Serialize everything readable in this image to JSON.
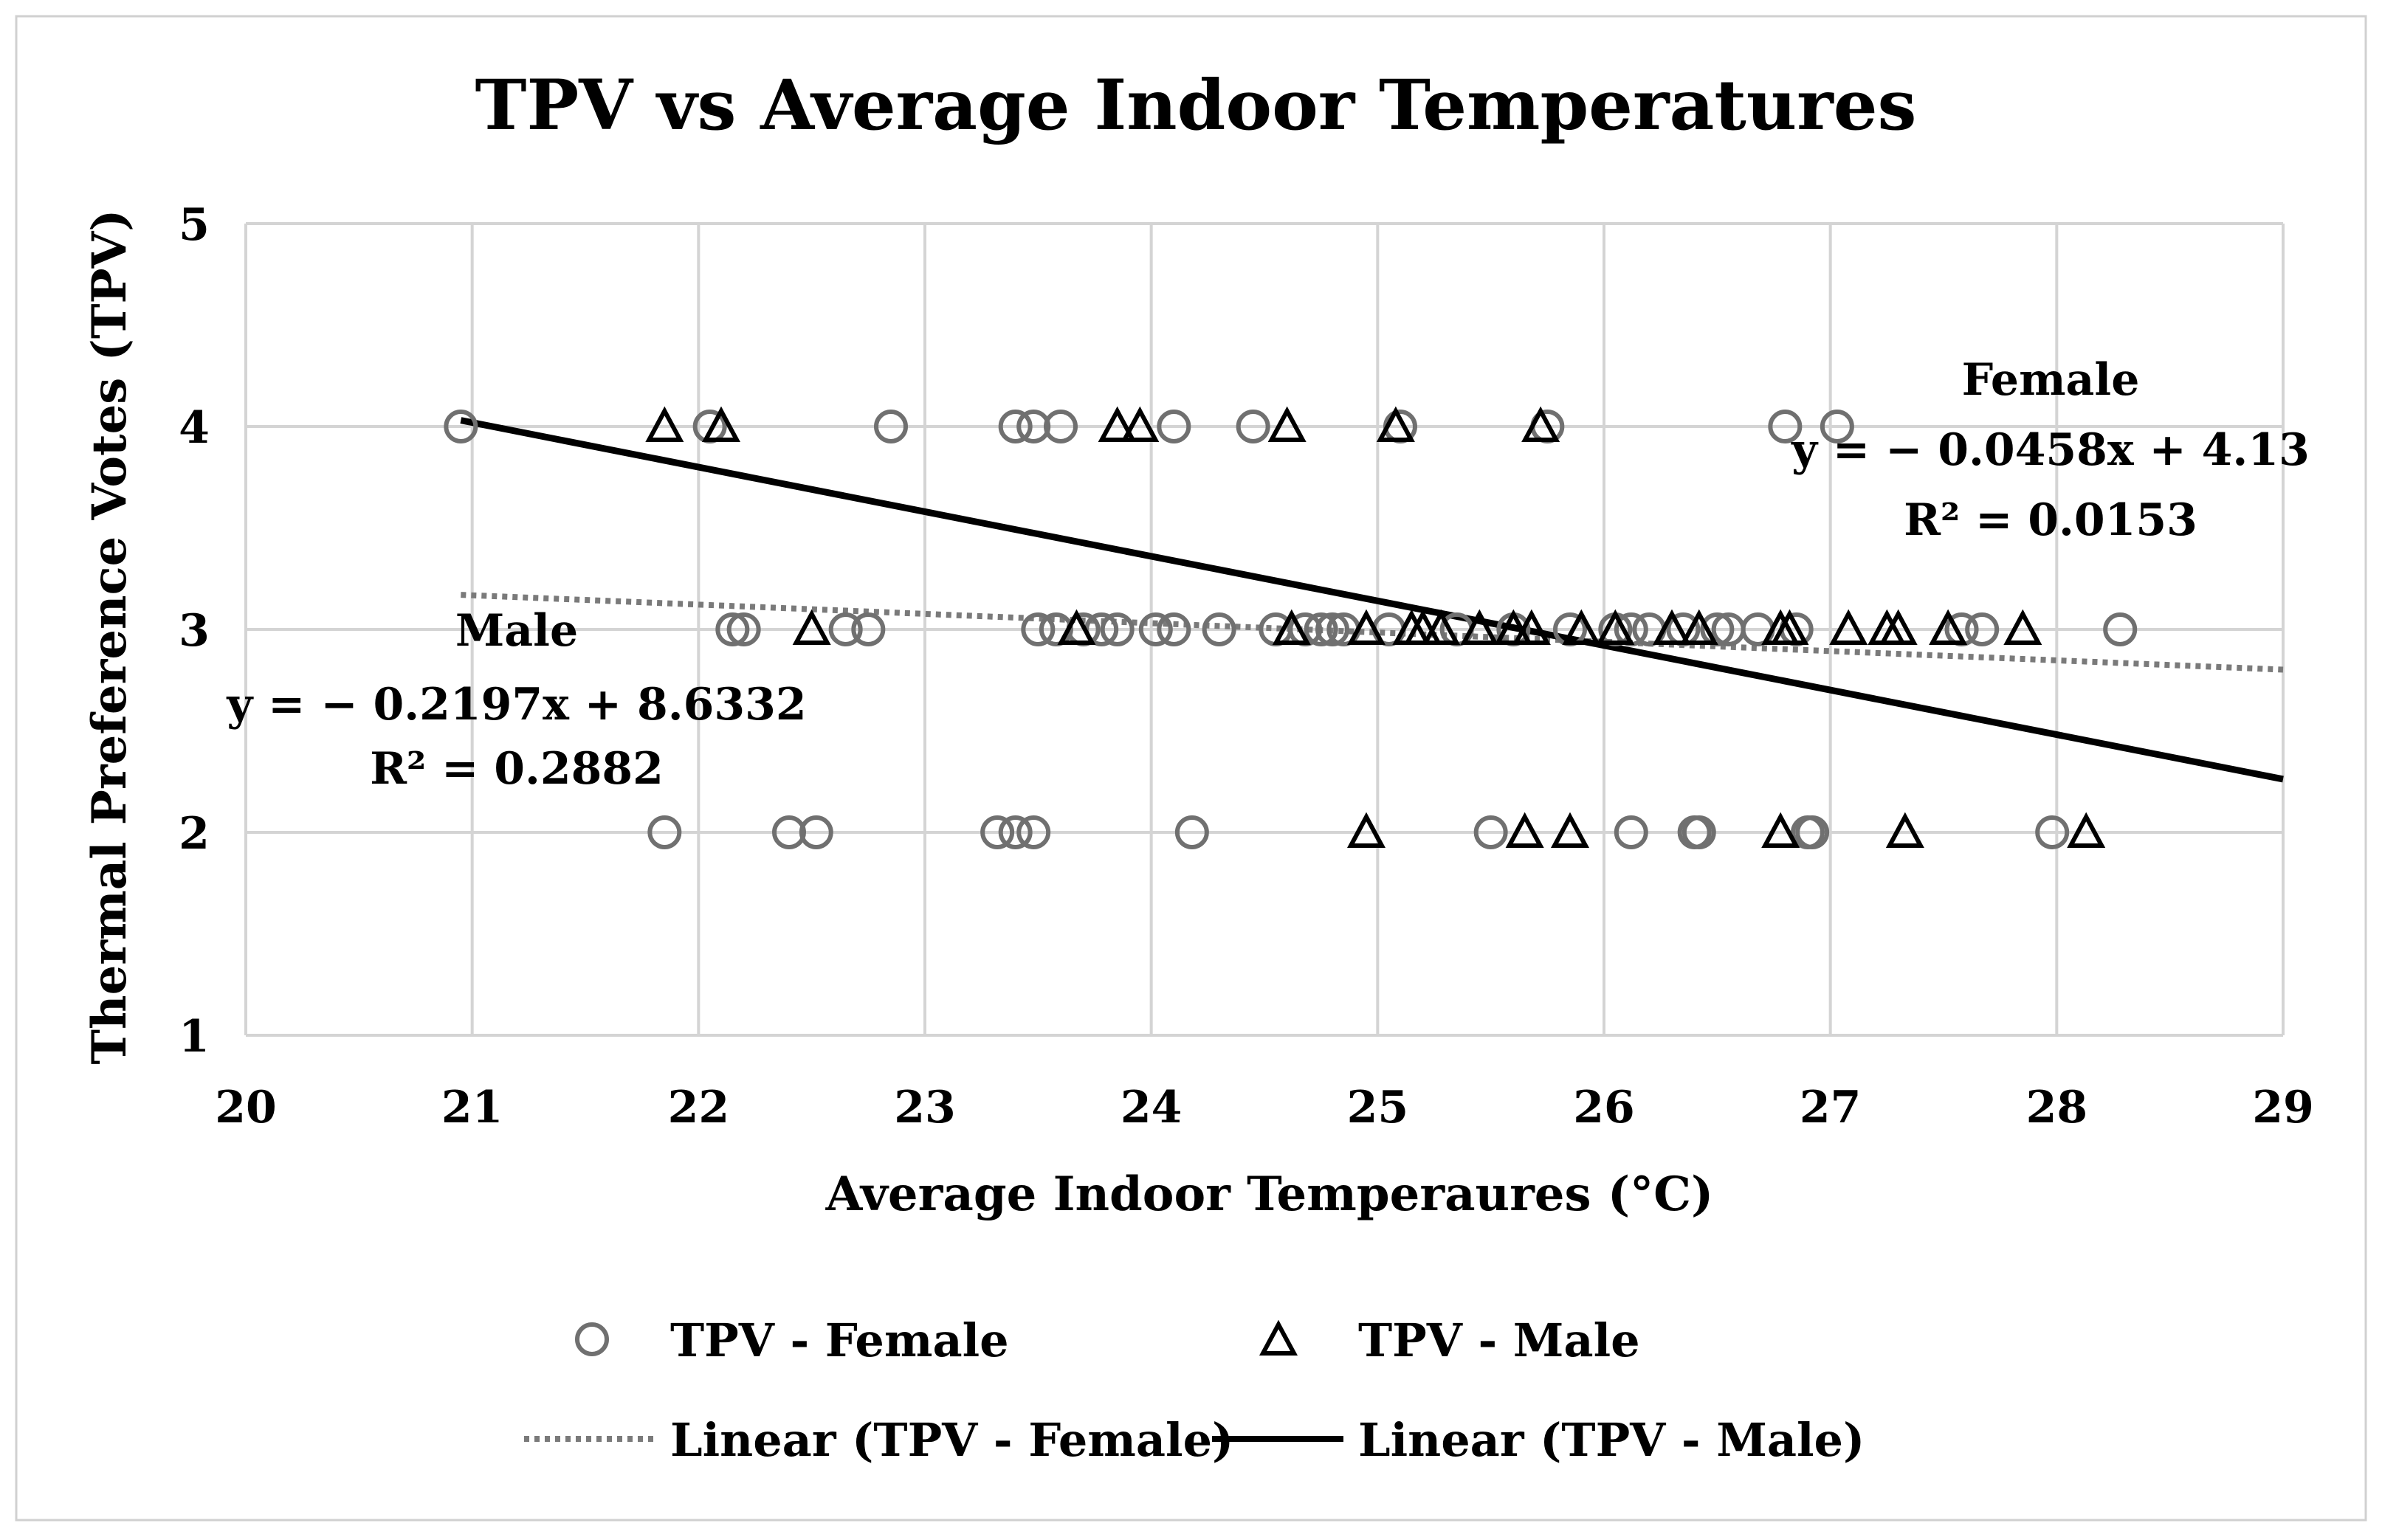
{
  "chart_data": {
    "type": "scatter",
    "title": "TPV vs Average Indoor Temperatures",
    "xlabel": "Average Indoor Temperaures (°C)",
    "ylabel": "Thermal Preference Votes (TPV)",
    "xlim": [
      20,
      29
    ],
    "ylim": [
      1,
      5
    ],
    "xticks": [
      20,
      21,
      22,
      23,
      24,
      25,
      26,
      27,
      28,
      29
    ],
    "yticks": [
      1,
      2,
      3,
      4,
      5
    ],
    "grid": true,
    "legend_position": "bottom",
    "series": [
      {
        "name": "TPV - Female",
        "marker": "circle",
        "color": "#707070",
        "points": [
          [
            20.95,
            4
          ],
          [
            22.05,
            4
          ],
          [
            22.85,
            4
          ],
          [
            23.4,
            4
          ],
          [
            23.48,
            4
          ],
          [
            23.6,
            4
          ],
          [
            24.1,
            4
          ],
          [
            24.45,
            4
          ],
          [
            25.1,
            4
          ],
          [
            25.75,
            4
          ],
          [
            26.8,
            4
          ],
          [
            27.03,
            4
          ],
          [
            22.15,
            3
          ],
          [
            22.2,
            3
          ],
          [
            22.65,
            3
          ],
          [
            22.75,
            3
          ],
          [
            23.5,
            3
          ],
          [
            23.58,
            3
          ],
          [
            23.7,
            3
          ],
          [
            23.78,
            3
          ],
          [
            23.85,
            3
          ],
          [
            24.02,
            3
          ],
          [
            24.1,
            3
          ],
          [
            24.3,
            3
          ],
          [
            24.55,
            3
          ],
          [
            24.68,
            3
          ],
          [
            24.75,
            3
          ],
          [
            24.8,
            3
          ],
          [
            24.85,
            3
          ],
          [
            25.05,
            3
          ],
          [
            25.35,
            3
          ],
          [
            25.6,
            3
          ],
          [
            25.85,
            3
          ],
          [
            26.05,
            3
          ],
          [
            26.12,
            3
          ],
          [
            26.2,
            3
          ],
          [
            26.35,
            3
          ],
          [
            26.5,
            3
          ],
          [
            26.55,
            3
          ],
          [
            26.68,
            3
          ],
          [
            26.85,
            3
          ],
          [
            27.58,
            3
          ],
          [
            27.67,
            3
          ],
          [
            28.28,
            3
          ],
          [
            21.85,
            2
          ],
          [
            22.4,
            2
          ],
          [
            22.52,
            2
          ],
          [
            23.32,
            2
          ],
          [
            23.4,
            2
          ],
          [
            23.48,
            2
          ],
          [
            24.18,
            2
          ],
          [
            25.5,
            2
          ],
          [
            26.12,
            2
          ],
          [
            26.4,
            2
          ],
          [
            26.42,
            2
          ],
          [
            26.9,
            2
          ],
          [
            26.92,
            2
          ],
          [
            27.98,
            2
          ]
        ]
      },
      {
        "name": "TPV - Male",
        "marker": "triangle",
        "color": "#000000",
        "points": [
          [
            21.85,
            4
          ],
          [
            22.1,
            4
          ],
          [
            23.85,
            4
          ],
          [
            23.95,
            4
          ],
          [
            24.6,
            4
          ],
          [
            25.08,
            4
          ],
          [
            25.72,
            4
          ],
          [
            22.5,
            3
          ],
          [
            23.67,
            3
          ],
          [
            24.62,
            3
          ],
          [
            24.95,
            3
          ],
          [
            25.15,
            3
          ],
          [
            25.2,
            3
          ],
          [
            25.28,
            3
          ],
          [
            25.45,
            3
          ],
          [
            25.6,
            3
          ],
          [
            25.68,
            3
          ],
          [
            25.9,
            3
          ],
          [
            26.05,
            3
          ],
          [
            26.3,
            3
          ],
          [
            26.42,
            3
          ],
          [
            26.78,
            3
          ],
          [
            26.82,
            3
          ],
          [
            27.08,
            3
          ],
          [
            27.25,
            3
          ],
          [
            27.3,
            3
          ],
          [
            27.52,
            3
          ],
          [
            27.85,
            3
          ],
          [
            24.95,
            2
          ],
          [
            25.65,
            2
          ],
          [
            25.85,
            2
          ],
          [
            26.78,
            2
          ],
          [
            27.33,
            2
          ],
          [
            28.13,
            2
          ]
        ]
      }
    ],
    "trendlines": [
      {
        "name": "Linear (TPV - Female)",
        "slope": -0.0458,
        "intercept": 4.13,
        "x_start": 20.95,
        "x_end": 29,
        "style": "dotted",
        "color": "#7a7a7a"
      },
      {
        "name": "Linear (TPV - Male)",
        "slope": -0.2197,
        "intercept": 8.6332,
        "x_start": 20.95,
        "x_end": 29,
        "style": "solid",
        "color": "#000000"
      }
    ],
    "annotations": [
      {
        "group": "Female",
        "label": "Female",
        "equation": "y = − 0.0458x + 4.13",
        "r2": "R² = 0.0153"
      },
      {
        "group": "Male",
        "label": "Male",
        "equation": "y = − 0.2197x + 8.6332",
        "r2": "R² = 0.2882"
      }
    ],
    "legend": [
      {
        "label": "TPV - Female",
        "kind": "circle"
      },
      {
        "label": "TPV - Male",
        "kind": "triangle"
      },
      {
        "label": "Linear (TPV - Female)",
        "kind": "dotted-line"
      },
      {
        "label": "Linear (TPV - Male)",
        "kind": "solid-line"
      }
    ]
  }
}
